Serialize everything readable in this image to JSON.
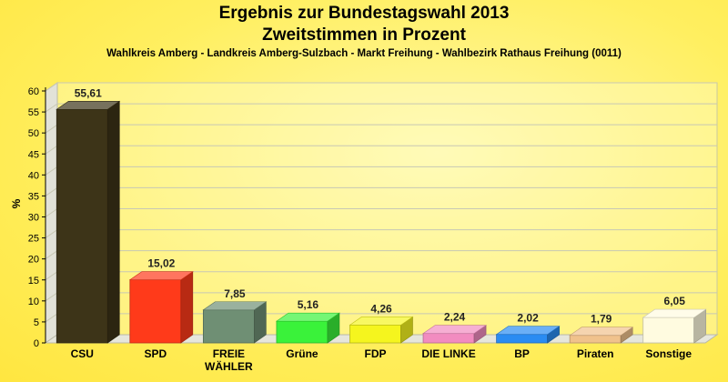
{
  "title_line1": "Ergebnis zur Bundestagswahl 2013",
  "title_line2": "Zweitstimmen in Prozent",
  "subtitle": "Wahlkreis Amberg - Landkreis Amberg-Sulzbach - Markt Freihung - Wahlbezirk Rathaus Freihung (0011)",
  "chart_data": {
    "type": "bar",
    "title": "Ergebnis zur Bundestagswahl 2013",
    "subtitle": "Zweitstimmen in Prozent",
    "ylabel": "%",
    "xlabel": "",
    "ylim": [
      0,
      60
    ],
    "yticks": [
      0,
      5,
      10,
      15,
      20,
      25,
      30,
      35,
      40,
      45,
      50,
      55,
      60
    ],
    "grid": true,
    "categories": [
      [
        "CSU"
      ],
      [
        "SPD"
      ],
      [
        "FREIE",
        "WÄHLER"
      ],
      [
        "Grüne"
      ],
      [
        "FDP"
      ],
      [
        "DIE LINKE"
      ],
      [
        "BP"
      ],
      [
        "Piraten"
      ],
      [
        "Sonstige"
      ]
    ],
    "values": [
      55.61,
      15.02,
      7.85,
      5.16,
      4.26,
      2.24,
      2.02,
      1.79,
      6.05
    ],
    "value_labels": [
      "55,61",
      "15,02",
      "7,85",
      "5,16",
      "4,26",
      "2,24",
      "2,02",
      "1,79",
      "6,05"
    ],
    "colors": [
      "#3d3418",
      "#ff3a1a",
      "#6f8f74",
      "#3af23a",
      "#f5f51e",
      "#f28cc0",
      "#2a8cf2",
      "#f0c28c",
      "#fffbe0"
    ]
  }
}
